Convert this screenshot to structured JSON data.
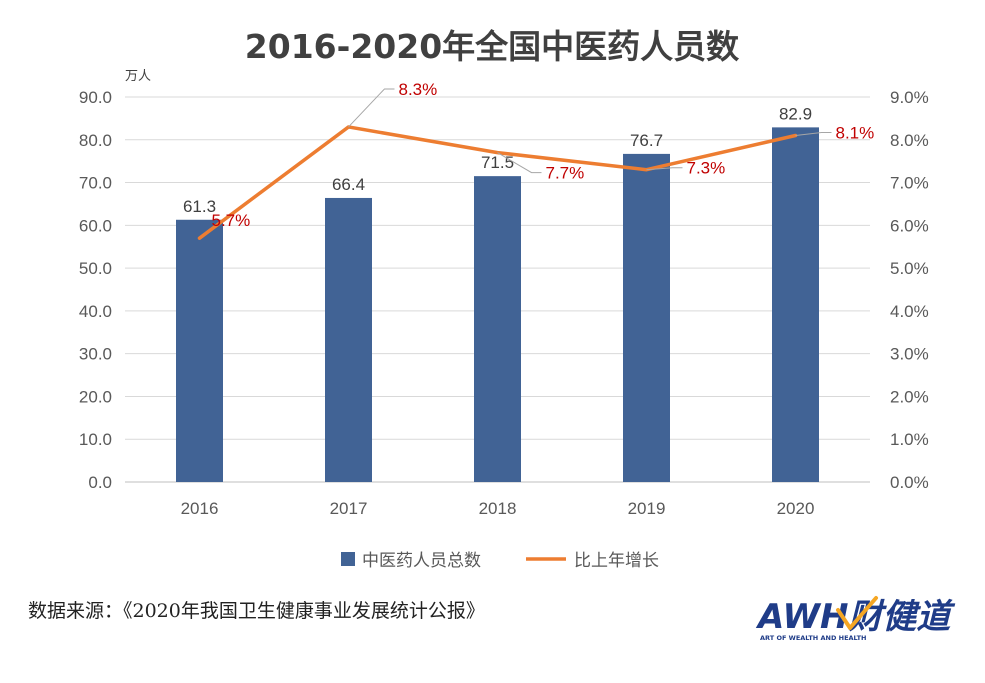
{
  "chart_data": {
    "type": "bar+line",
    "title": "2016-2020年全国中医药人员数",
    "categories": [
      "2016",
      "2017",
      "2018",
      "2019",
      "2020"
    ],
    "series": [
      {
        "name": "中医药人员总数",
        "kind": "bar",
        "axis": "left",
        "values": [
          61.3,
          66.4,
          71.5,
          76.7,
          82.9
        ],
        "labels": [
          "61.3",
          "66.4",
          "71.5",
          "76.7",
          "82.9"
        ],
        "color": "#416395"
      },
      {
        "name": "比上年增长",
        "kind": "line",
        "axis": "right",
        "values": [
          5.7,
          8.3,
          7.7,
          7.3,
          8.1
        ],
        "labels": [
          "5.7%",
          "8.3%",
          "7.7%",
          "7.3%",
          "8.1%"
        ],
        "color": "#ed7d31",
        "label_color": "#c00000"
      }
    ],
    "y_left": {
      "unit": "万人",
      "range": [
        0,
        90
      ],
      "ticks": [
        "0.0",
        "10.0",
        "20.0",
        "30.0",
        "40.0",
        "50.0",
        "60.0",
        "70.0",
        "80.0",
        "90.0"
      ]
    },
    "y_right": {
      "range": [
        0,
        9
      ],
      "ticks": [
        "0.0%",
        "1.0%",
        "2.0%",
        "3.0%",
        "4.0%",
        "5.0%",
        "6.0%",
        "7.0%",
        "8.0%",
        "9.0%"
      ]
    },
    "grid": true,
    "legend": "bottom-center"
  },
  "source": "数据来源：《2020年我国卫生健康事业发展统计公报》",
  "logo": {
    "main": "AWH财健道",
    "sub": "ART OF WEALTH AND HEALTH"
  }
}
